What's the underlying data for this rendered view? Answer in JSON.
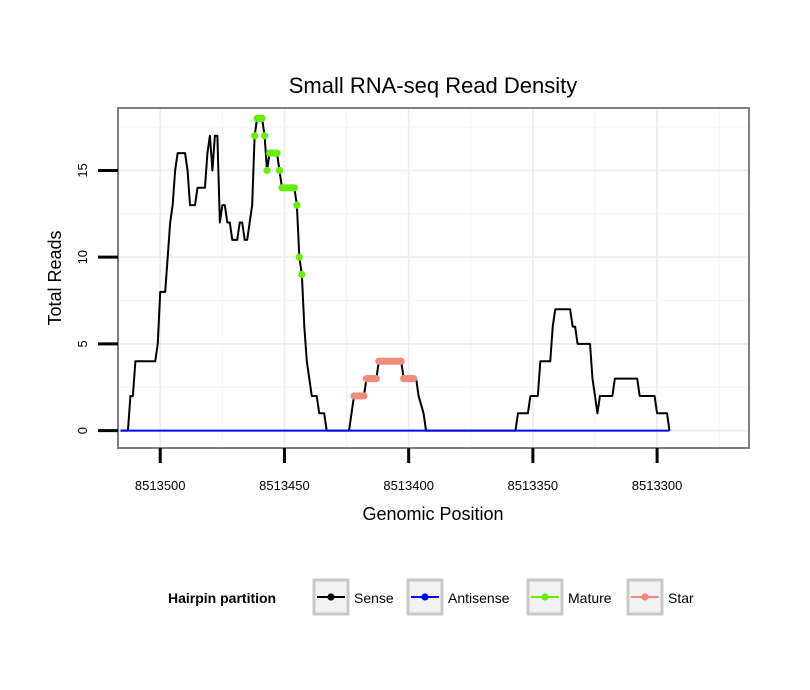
{
  "chart_data": {
    "type": "line",
    "title": "Small RNA-seq Read Density",
    "xlabel": "Genomic Position",
    "ylabel": "Total Reads",
    "xlim": [
      8513517,
      8513263
    ],
    "x_reversed": true,
    "ylim": [
      -1,
      18.6
    ],
    "x_ticks": [
      8513500,
      8513450,
      8513400,
      8513350,
      8513300
    ],
    "x_tick_labels": [
      "8513500",
      "8513450",
      "8513400",
      "8513350",
      "8513300"
    ],
    "y_ticks": [
      0,
      5,
      10,
      15
    ],
    "y_tick_labels": [
      "0",
      "5",
      "10",
      "15"
    ],
    "grid": true,
    "legend": {
      "title": "Hairpin partition",
      "position": "bottom",
      "entries": [
        "Sense",
        "Antisense",
        "Mature",
        "Star"
      ]
    },
    "series": [
      {
        "name": "Sense",
        "color": "#000000",
        "style": "line",
        "points": [
          [
            8513516,
            0
          ],
          [
            8513513,
            0
          ],
          [
            8513512,
            2
          ],
          [
            8513511,
            2
          ],
          [
            8513510,
            4
          ],
          [
            8513502,
            4
          ],
          [
            8513501,
            5
          ],
          [
            8513500,
            8
          ],
          [
            8513498,
            8
          ],
          [
            8513497,
            10
          ],
          [
            8513496,
            12
          ],
          [
            8513495,
            13
          ],
          [
            8513494,
            15
          ],
          [
            8513493,
            16
          ],
          [
            8513490,
            16
          ],
          [
            8513489,
            15
          ],
          [
            8513488,
            13
          ],
          [
            8513486,
            13
          ],
          [
            8513485,
            14
          ],
          [
            8513482,
            14
          ],
          [
            8513481,
            16
          ],
          [
            8513480,
            17
          ],
          [
            8513479,
            15
          ],
          [
            8513478,
            17
          ],
          [
            8513477,
            17
          ],
          [
            8513476,
            12
          ],
          [
            8513475,
            13
          ],
          [
            8513474,
            13
          ],
          [
            8513473,
            12
          ],
          [
            8513472,
            12
          ],
          [
            8513471,
            11
          ],
          [
            8513469,
            11
          ],
          [
            8513468,
            12
          ],
          [
            8513467,
            12
          ],
          [
            8513466,
            11
          ],
          [
            8513465,
            11
          ],
          [
            8513464,
            12
          ],
          [
            8513463,
            13
          ],
          [
            8513462,
            17
          ],
          [
            8513461,
            18
          ],
          [
            8513459,
            18
          ],
          [
            8513458,
            17
          ],
          [
            8513457,
            15
          ],
          [
            8513456,
            16
          ],
          [
            8513453,
            16
          ],
          [
            8513452,
            15
          ],
          [
            8513451,
            14
          ],
          [
            8513446,
            14
          ],
          [
            8513445,
            13
          ],
          [
            8513444,
            10
          ],
          [
            8513443,
            9
          ],
          [
            8513442,
            6
          ],
          [
            8513441,
            4
          ],
          [
            8513440,
            3
          ],
          [
            8513439,
            2
          ],
          [
            8513437,
            2
          ],
          [
            8513436,
            1
          ],
          [
            8513434,
            1
          ],
          [
            8513433,
            0
          ],
          [
            8513424,
            0
          ],
          [
            8513423,
            1
          ],
          [
            8513422,
            2
          ],
          [
            8513418,
            2
          ],
          [
            8513417,
            3
          ],
          [
            8513413,
            3
          ],
          [
            8513412,
            4
          ],
          [
            8513403,
            4
          ],
          [
            8513402,
            3
          ],
          [
            8513397,
            3
          ],
          [
            8513396,
            2
          ],
          [
            8513394,
            1
          ],
          [
            8513393,
            0
          ],
          [
            8513357,
            0
          ],
          [
            8513356,
            1
          ],
          [
            8513352,
            1
          ],
          [
            8513351,
            2
          ],
          [
            8513348,
            2
          ],
          [
            8513347,
            4
          ],
          [
            8513343,
            4
          ],
          [
            8513342,
            6
          ],
          [
            8513341,
            7
          ],
          [
            8513335,
            7
          ],
          [
            8513334,
            6
          ],
          [
            8513333,
            6
          ],
          [
            8513332,
            5
          ],
          [
            8513327,
            5
          ],
          [
            8513326,
            3
          ],
          [
            8513325,
            2
          ],
          [
            8513324,
            1
          ],
          [
            8513323,
            2
          ],
          [
            8513320,
            2
          ],
          [
            8513318,
            2
          ],
          [
            8513317,
            3
          ],
          [
            8513314,
            3
          ],
          [
            8513308,
            3
          ],
          [
            8513307,
            2
          ],
          [
            8513301,
            2
          ],
          [
            8513300,
            1
          ],
          [
            8513296,
            1
          ],
          [
            8513295,
            0
          ]
        ]
      },
      {
        "name": "Antisense",
        "color": "#0000ff",
        "style": "line",
        "points": [
          [
            8513516,
            0
          ],
          [
            8513295,
            0
          ]
        ]
      },
      {
        "name": "Mature",
        "color": "#66ee00",
        "style": "points",
        "points": [
          [
            8513462,
            17
          ],
          [
            8513461,
            18
          ],
          [
            8513460,
            18
          ],
          [
            8513459,
            18
          ],
          [
            8513458,
            17
          ],
          [
            8513457,
            15
          ],
          [
            8513456,
            16
          ],
          [
            8513455,
            16
          ],
          [
            8513454,
            16
          ],
          [
            8513453,
            16
          ],
          [
            8513452,
            15
          ],
          [
            8513451,
            14
          ],
          [
            8513450,
            14
          ],
          [
            8513449,
            14
          ],
          [
            8513448,
            14
          ],
          [
            8513447,
            14
          ],
          [
            8513446,
            14
          ],
          [
            8513445,
            13
          ],
          [
            8513444,
            10
          ],
          [
            8513443,
            9
          ]
        ]
      },
      {
        "name": "Star",
        "color": "#f08a7a",
        "style": "points",
        "points": [
          [
            8513422,
            2
          ],
          [
            8513421,
            2
          ],
          [
            8513420,
            2
          ],
          [
            8513419,
            2
          ],
          [
            8513418,
            2
          ],
          [
            8513417,
            3
          ],
          [
            8513416,
            3
          ],
          [
            8513415,
            3
          ],
          [
            8513414,
            3
          ],
          [
            8513413,
            3
          ],
          [
            8513412,
            4
          ],
          [
            8513411,
            4
          ],
          [
            8513410,
            4
          ],
          [
            8513409,
            4
          ],
          [
            8513408,
            4
          ],
          [
            8513407,
            4
          ],
          [
            8513406,
            4
          ],
          [
            8513405,
            4
          ],
          [
            8513404,
            4
          ],
          [
            8513403,
            4
          ],
          [
            8513402,
            3
          ],
          [
            8513401,
            3
          ],
          [
            8513400,
            3
          ],
          [
            8513399,
            3
          ],
          [
            8513398,
            3
          ]
        ]
      }
    ]
  }
}
